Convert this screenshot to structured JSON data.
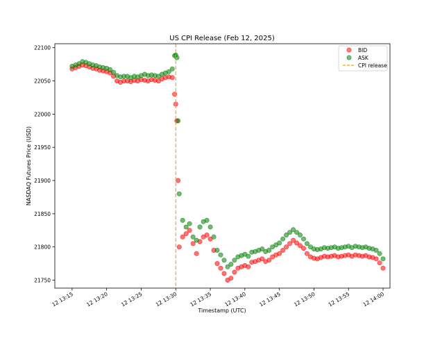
{
  "chart_data": {
    "type": "scatter",
    "title": "US CPI Release (Feb 12, 2025)",
    "xlabel": "Timestamp (UTC)",
    "ylabel": "NASDAQ Futures Price (USD)",
    "x_ticks": [
      "12 13:15",
      "12 13:20",
      "12 13:25",
      "12 13:30",
      "12 13:35",
      "12 13:40",
      "12 13:45",
      "12 13:50",
      "12 13:55",
      "12 14:00"
    ],
    "y_ticks": [
      21750,
      21800,
      21850,
      21900,
      21950,
      22000,
      22050,
      22100
    ],
    "xlim": [
      "2025-02-12 13:12:30",
      "2025-02-12 14:01:00"
    ],
    "ylim": [
      21738,
      22106
    ],
    "grid": false,
    "legend_position": "top-right",
    "series": [
      {
        "name": "BID",
        "color": "#ff0000",
        "points": [
          [
            "2025-02-12 13:15:00",
            22068
          ],
          [
            "2025-02-12 13:15:30",
            22070
          ],
          [
            "2025-02-12 13:16:00",
            22072
          ],
          [
            "2025-02-12 13:16:30",
            22074
          ],
          [
            "2025-02-12 13:17:00",
            22073
          ],
          [
            "2025-02-12 13:17:30",
            22071
          ],
          [
            "2025-02-12 13:18:00",
            22069
          ],
          [
            "2025-02-12 13:18:30",
            22068
          ],
          [
            "2025-02-12 13:19:00",
            22066
          ],
          [
            "2025-02-12 13:19:30",
            22065
          ],
          [
            "2025-02-12 13:20:00",
            22064
          ],
          [
            "2025-02-12 13:20:30",
            22062
          ],
          [
            "2025-02-12 13:21:00",
            22057
          ],
          [
            "2025-02-12 13:21:30",
            22050
          ],
          [
            "2025-02-12 13:22:00",
            22048
          ],
          [
            "2025-02-12 13:22:30",
            22050
          ],
          [
            "2025-02-12 13:23:00",
            22050
          ],
          [
            "2025-02-12 13:23:30",
            22049
          ],
          [
            "2025-02-12 13:24:00",
            22051
          ],
          [
            "2025-02-12 13:24:30",
            22050
          ],
          [
            "2025-02-12 13:25:00",
            22052
          ],
          [
            "2025-02-12 13:25:30",
            22051
          ],
          [
            "2025-02-12 13:26:00",
            22050
          ],
          [
            "2025-02-12 13:26:30",
            22052
          ],
          [
            "2025-02-12 13:27:00",
            22051
          ],
          [
            "2025-02-12 13:27:30",
            22050
          ],
          [
            "2025-02-12 13:28:00",
            22053
          ],
          [
            "2025-02-12 13:28:30",
            22055
          ],
          [
            "2025-02-12 13:29:00",
            22056
          ],
          [
            "2025-02-12 13:29:30",
            22055
          ],
          [
            "2025-02-12 13:29:50",
            22030
          ],
          [
            "2025-02-12 13:30:00",
            22015
          ],
          [
            "2025-02-12 13:30:10",
            21990
          ],
          [
            "2025-02-12 13:30:20",
            21900
          ],
          [
            "2025-02-12 13:30:30",
            21800
          ],
          [
            "2025-02-12 13:31:00",
            21815
          ],
          [
            "2025-02-12 13:31:30",
            21820
          ],
          [
            "2025-02-12 13:32:00",
            21825
          ],
          [
            "2025-02-12 13:32:30",
            21805
          ],
          [
            "2025-02-12 13:33:00",
            21790
          ],
          [
            "2025-02-12 13:33:30",
            21808
          ],
          [
            "2025-02-12 13:34:00",
            21815
          ],
          [
            "2025-02-12 13:34:30",
            21818
          ],
          [
            "2025-02-12 13:35:00",
            21812
          ],
          [
            "2025-02-12 13:35:30",
            21795
          ],
          [
            "2025-02-12 13:36:00",
            21775
          ],
          [
            "2025-02-12 13:36:30",
            21768
          ],
          [
            "2025-02-12 13:37:00",
            21760
          ],
          [
            "2025-02-12 13:37:30",
            21750
          ],
          [
            "2025-02-12 13:38:00",
            21753
          ],
          [
            "2025-02-12 13:38:30",
            21762
          ],
          [
            "2025-02-12 13:39:00",
            21768
          ],
          [
            "2025-02-12 13:39:30",
            21770
          ],
          [
            "2025-02-12 13:40:00",
            21772
          ],
          [
            "2025-02-12 13:40:30",
            21770
          ],
          [
            "2025-02-12 13:41:00",
            21777
          ],
          [
            "2025-02-12 13:41:30",
            21778
          ],
          [
            "2025-02-12 13:42:00",
            21780
          ],
          [
            "2025-02-12 13:42:30",
            21782
          ],
          [
            "2025-02-12 13:43:00",
            21778
          ],
          [
            "2025-02-12 13:43:30",
            21780
          ],
          [
            "2025-02-12 13:44:00",
            21785
          ],
          [
            "2025-02-12 13:44:30",
            21788
          ],
          [
            "2025-02-12 13:45:00",
            21790
          ],
          [
            "2025-02-12 13:45:30",
            21795
          ],
          [
            "2025-02-12 13:46:00",
            21800
          ],
          [
            "2025-02-12 13:46:30",
            21805
          ],
          [
            "2025-02-12 13:47:00",
            21810
          ],
          [
            "2025-02-12 13:47:30",
            21806
          ],
          [
            "2025-02-12 13:48:00",
            21802
          ],
          [
            "2025-02-12 13:48:30",
            21798
          ],
          [
            "2025-02-12 13:49:00",
            21790
          ],
          [
            "2025-02-12 13:49:30",
            21785
          ],
          [
            "2025-02-12 13:50:00",
            21783
          ],
          [
            "2025-02-12 13:50:30",
            21782
          ],
          [
            "2025-02-12 13:51:00",
            21784
          ],
          [
            "2025-02-12 13:51:30",
            21786
          ],
          [
            "2025-02-12 13:52:00",
            21785
          ],
          [
            "2025-02-12 13:52:30",
            21786
          ],
          [
            "2025-02-12 13:53:00",
            21787
          ],
          [
            "2025-02-12 13:53:30",
            21785
          ],
          [
            "2025-02-12 13:54:00",
            21786
          ],
          [
            "2025-02-12 13:54:30",
            21787
          ],
          [
            "2025-02-12 13:55:00",
            21788
          ],
          [
            "2025-02-12 13:55:30",
            21786
          ],
          [
            "2025-02-12 13:56:00",
            21788
          ],
          [
            "2025-02-12 13:56:30",
            21787
          ],
          [
            "2025-02-12 13:57:00",
            21786
          ],
          [
            "2025-02-12 13:57:30",
            21787
          ],
          [
            "2025-02-12 13:58:00",
            21785
          ],
          [
            "2025-02-12 13:58:30",
            21784
          ],
          [
            "2025-02-12 13:59:00",
            21782
          ],
          [
            "2025-02-12 13:59:30",
            21776
          ],
          [
            "2025-02-12 14:00:00",
            21768
          ]
        ]
      },
      {
        "name": "ASK",
        "color": "#008000",
        "points": [
          [
            "2025-02-12 13:15:00",
            22072
          ],
          [
            "2025-02-12 13:15:30",
            22074
          ],
          [
            "2025-02-12 13:16:00",
            22076
          ],
          [
            "2025-02-12 13:16:30",
            22079
          ],
          [
            "2025-02-12 13:17:00",
            22078
          ],
          [
            "2025-02-12 13:17:30",
            22076
          ],
          [
            "2025-02-12 13:18:00",
            22074
          ],
          [
            "2025-02-12 13:18:30",
            22073
          ],
          [
            "2025-02-12 13:19:00",
            22071
          ],
          [
            "2025-02-12 13:19:30",
            22070
          ],
          [
            "2025-02-12 13:20:00",
            22069
          ],
          [
            "2025-02-12 13:20:30",
            22067
          ],
          [
            "2025-02-12 13:21:00",
            22063
          ],
          [
            "2025-02-12 13:21:30",
            22058
          ],
          [
            "2025-02-12 13:22:00",
            22056
          ],
          [
            "2025-02-12 13:22:30",
            22057
          ],
          [
            "2025-02-12 13:23:00",
            22057
          ],
          [
            "2025-02-12 13:23:30",
            22055
          ],
          [
            "2025-02-12 13:24:00",
            22057
          ],
          [
            "2025-02-12 13:24:30",
            22056
          ],
          [
            "2025-02-12 13:25:00",
            22058
          ],
          [
            "2025-02-12 13:25:30",
            22060
          ],
          [
            "2025-02-12 13:26:00",
            22058
          ],
          [
            "2025-02-12 13:26:30",
            22059
          ],
          [
            "2025-02-12 13:27:00",
            22058
          ],
          [
            "2025-02-12 13:27:30",
            22057
          ],
          [
            "2025-02-12 13:28:00",
            22060
          ],
          [
            "2025-02-12 13:28:30",
            22062
          ],
          [
            "2025-02-12 13:29:00",
            22064
          ],
          [
            "2025-02-12 13:29:30",
            22068
          ],
          [
            "2025-02-12 13:29:50",
            22088
          ],
          [
            "2025-02-12 13:30:00",
            22089
          ],
          [
            "2025-02-12 13:30:10",
            22085
          ],
          [
            "2025-02-12 13:30:20",
            21990
          ],
          [
            "2025-02-12 13:30:30",
            21880
          ],
          [
            "2025-02-12 13:31:00",
            21840
          ],
          [
            "2025-02-12 13:31:30",
            21830
          ],
          [
            "2025-02-12 13:32:00",
            21835
          ],
          [
            "2025-02-12 13:32:30",
            21815
          ],
          [
            "2025-02-12 13:33:00",
            21810
          ],
          [
            "2025-02-12 13:33:30",
            21830
          ],
          [
            "2025-02-12 13:34:00",
            21838
          ],
          [
            "2025-02-12 13:34:30",
            21840
          ],
          [
            "2025-02-12 13:35:00",
            21830
          ],
          [
            "2025-02-12 13:35:30",
            21815
          ],
          [
            "2025-02-12 13:36:00",
            21795
          ],
          [
            "2025-02-12 13:36:30",
            21788
          ],
          [
            "2025-02-12 13:37:00",
            21780
          ],
          [
            "2025-02-12 13:37:30",
            21770
          ],
          [
            "2025-02-12 13:38:00",
            21774
          ],
          [
            "2025-02-12 13:38:30",
            21780
          ],
          [
            "2025-02-12 13:39:00",
            21785
          ],
          [
            "2025-02-12 13:39:30",
            21787
          ],
          [
            "2025-02-12 13:40:00",
            21789
          ],
          [
            "2025-02-12 13:40:30",
            21786
          ],
          [
            "2025-02-12 13:41:00",
            21792
          ],
          [
            "2025-02-12 13:41:30",
            21793
          ],
          [
            "2025-02-12 13:42:00",
            21795
          ],
          [
            "2025-02-12 13:42:30",
            21797
          ],
          [
            "2025-02-12 13:43:00",
            21793
          ],
          [
            "2025-02-12 13:43:30",
            21795
          ],
          [
            "2025-02-12 13:44:00",
            21800
          ],
          [
            "2025-02-12 13:44:30",
            21803
          ],
          [
            "2025-02-12 13:45:00",
            21806
          ],
          [
            "2025-02-12 13:45:30",
            21812
          ],
          [
            "2025-02-12 13:46:00",
            21818
          ],
          [
            "2025-02-12 13:46:30",
            21822
          ],
          [
            "2025-02-12 13:47:00",
            21826
          ],
          [
            "2025-02-12 13:47:30",
            21822
          ],
          [
            "2025-02-12 13:48:00",
            21818
          ],
          [
            "2025-02-12 13:48:30",
            21812
          ],
          [
            "2025-02-12 13:49:00",
            21805
          ],
          [
            "2025-02-12 13:49:30",
            21800
          ],
          [
            "2025-02-12 13:50:00",
            21797
          ],
          [
            "2025-02-12 13:50:30",
            21796
          ],
          [
            "2025-02-12 13:51:00",
            21797
          ],
          [
            "2025-02-12 13:51:30",
            21799
          ],
          [
            "2025-02-12 13:52:00",
            21798
          ],
          [
            "2025-02-12 13:52:30",
            21799
          ],
          [
            "2025-02-12 13:53:00",
            21800
          ],
          [
            "2025-02-12 13:53:30",
            21798
          ],
          [
            "2025-02-12 13:54:00",
            21799
          ],
          [
            "2025-02-12 13:54:30",
            21800
          ],
          [
            "2025-02-12 13:55:00",
            21801
          ],
          [
            "2025-02-12 13:55:30",
            21799
          ],
          [
            "2025-02-12 13:56:00",
            21801
          ],
          [
            "2025-02-12 13:56:30",
            21800
          ],
          [
            "2025-02-12 13:57:00",
            21799
          ],
          [
            "2025-02-12 13:57:30",
            21800
          ],
          [
            "2025-02-12 13:58:00",
            21798
          ],
          [
            "2025-02-12 13:58:30",
            21797
          ],
          [
            "2025-02-12 13:59:00",
            21795
          ],
          [
            "2025-02-12 13:59:30",
            21790
          ],
          [
            "2025-02-12 14:00:00",
            21782
          ]
        ]
      }
    ],
    "annotations": [
      {
        "type": "vertical-line",
        "x": "2025-02-12 13:30:00",
        "label": "CPI release",
        "color": "#ffa500",
        "style": "dashed"
      }
    ]
  }
}
